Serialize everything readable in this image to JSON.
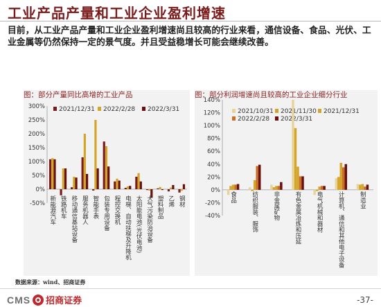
{
  "header": {
    "title": "工业产品产量和工业企业盈利增速",
    "intro": "目前，从工业产品产量和工业企业盈利增速尚且较高的行业来看，通信设备、食品、光伏、工业金属等仍然保持一定的景气度。并且受益稳增长可能会继续改善。"
  },
  "colors": {
    "c1": "#7b1c1c",
    "c2": "#d4a52b",
    "c3": "#e8d49a",
    "c4": "#c96e24",
    "c5": "#6a0f0f",
    "title": "#8b2323"
  },
  "chart_data": [
    {
      "type": "bar",
      "title": "图：部分产量同比高增的工业产品",
      "categories": [
        "新能源汽车",
        "铁路机车",
        "移动通信基站设备",
        "服务机器人",
        "智能手表",
        "包装专用设备",
        "程控交换机",
        "电梯、自动扶梯及升降机",
        "太阳能电池(光伏电池)",
        "大气污染防治设备",
        "塑料制品",
        "乙烯",
        "钢材"
      ],
      "series": [
        {
          "name": "2021/12/31",
          "values": [
            108,
            -22,
            7,
            115,
            -5,
            172,
            28,
            5,
            45,
            -3,
            3,
            -8,
            -12
          ]
        },
        {
          "name": "2022/2/28",
          "values": [
            112,
            75,
            45,
            200,
            250,
            155,
            38,
            10,
            58,
            -5,
            8,
            6,
            -6
          ]
        },
        {
          "name": "2022/3/31",
          "values": [
            108,
            75,
            42,
            55,
            75,
            82,
            31,
            12,
            28,
            -30,
            -3,
            15,
            18
          ]
        }
      ],
      "yticks": [
        -50,
        0,
        50,
        100,
        150,
        200,
        250,
        300
      ],
      "ylim": [
        -50,
        300
      ],
      "y_suffix": "%",
      "legend": "top"
    },
    {
      "type": "bar",
      "title": "图：部分利润增速尚且较高的工业企业细分行业",
      "categories": [
        "食品",
        "纺织服装、服饰",
        "非金属矿物",
        "有色金属冶炼和压延",
        "电气机械和器材",
        "计算机、通信和其他电子设备",
        "制造业"
      ],
      "series": [
        {
          "name": "2021/10/31",
          "values": [
            -8,
            4,
            8,
            140,
            -8,
            18,
            9
          ]
        },
        {
          "name": "2021/11/30",
          "values": [
            6,
            -2,
            4,
            96,
            -2,
            20,
            8
          ]
        },
        {
          "name": "2021/12/31",
          "values": [
            8,
            15,
            6,
            36,
            5,
            42,
            9
          ]
        },
        {
          "name": "2022/2/28",
          "values": [
            8,
            37,
            6,
            21,
            6,
            35,
            5
          ]
        },
        {
          "name": "2022/3/31",
          "values": [
            9,
            39,
            12,
            21,
            6,
            40,
            8
          ]
        }
      ],
      "yticks": [
        -40,
        -20,
        0,
        20,
        40,
        60,
        80,
        100,
        120,
        140
      ],
      "ylim": [
        -40,
        140
      ],
      "y_suffix": "%",
      "legend": "top"
    }
  ],
  "footer": {
    "source": "数据来源：wind、招商证券",
    "logo_en": "CMS",
    "logo_cn": "招商证券",
    "page": "-37-"
  }
}
